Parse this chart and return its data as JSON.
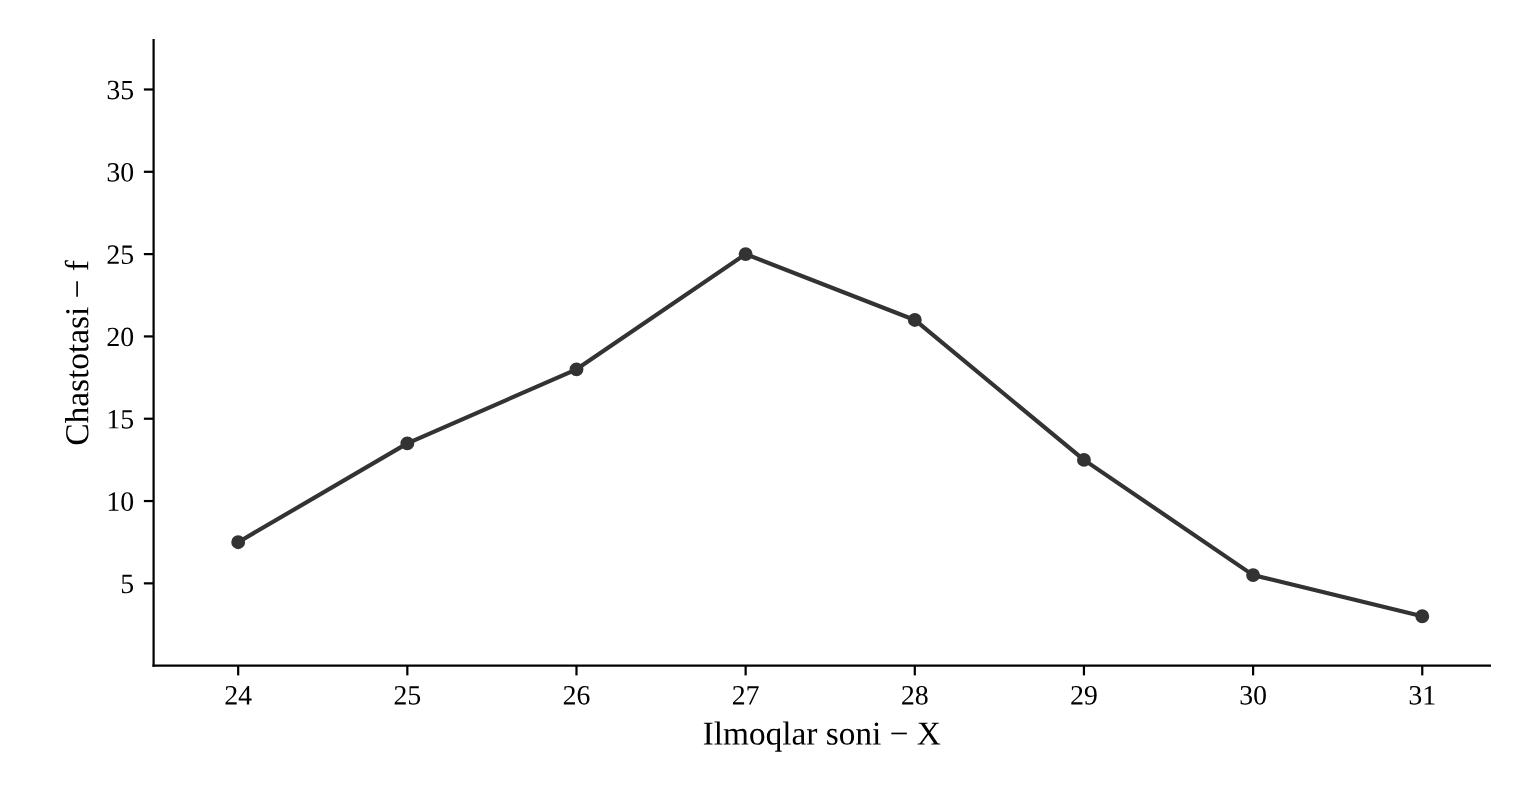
{
  "chart_data": {
    "type": "line",
    "xlabel": "Ilmoqlar soni − X",
    "ylabel": "Chastotasi − f",
    "categories": [
      "24",
      "25",
      "26",
      "27",
      "28",
      "29",
      "30",
      "31"
    ],
    "series": [
      {
        "color": "#333333",
        "values": [
          7.5,
          13.5,
          18,
          25,
          21,
          12.5,
          5.5,
          3
        ]
      }
    ],
    "ylim": [
      0,
      38
    ],
    "yticks": [
      5,
      10,
      15,
      20,
      25,
      30,
      35
    ],
    "marker": "circle",
    "line_style": "solid",
    "grid": false,
    "legend": false
  }
}
